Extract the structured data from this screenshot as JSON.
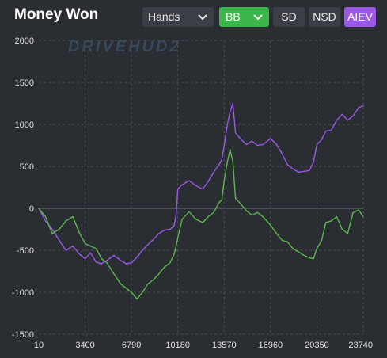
{
  "header": {
    "title": "Money Won",
    "x_select": "Hands",
    "unit_select": "BB",
    "buttons": [
      "SD",
      "NSD",
      "AIEV"
    ]
  },
  "watermark": "DRIVEHUD2",
  "colors": {
    "background": "#2a2d32",
    "grid": "#4a4f57",
    "zero_line": "#6d7280",
    "bb_button": "#3cb64a",
    "aiev_button": "#9b59e6"
  },
  "chart_data": {
    "type": "line",
    "title": "",
    "xlabel": "",
    "ylabel": "",
    "xlim": [
      10,
      23740
    ],
    "ylim": [
      -1500,
      2000
    ],
    "x_ticks": [
      10,
      3400,
      6790,
      10180,
      13570,
      16960,
      20350,
      23740
    ],
    "y_ticks": [
      -1500,
      -1000,
      -500,
      0,
      500,
      1000,
      1500,
      2000
    ],
    "grid": true,
    "series": [
      {
        "name": "",
        "color": "#9b59e6",
        "x": [
          10,
          500,
          1000,
          1500,
          2000,
          2500,
          3000,
          3400,
          3800,
          4200,
          4600,
          5000,
          5500,
          6000,
          6400,
          6790,
          7200,
          7600,
          8000,
          8400,
          8800,
          9200,
          9600,
          9900,
          10050,
          10180,
          10500,
          11000,
          11500,
          12000,
          12400,
          12800,
          13200,
          13400,
          13570,
          13800,
          14000,
          14200,
          14400,
          14800,
          15200,
          15600,
          16000,
          16400,
          16960,
          17400,
          17800,
          18200,
          18600,
          19000,
          19400,
          19800,
          20100,
          20350,
          20700,
          21000,
          21400,
          21800,
          22200,
          22600,
          23000,
          23400,
          23740
        ],
        "y": [
          0,
          -150,
          -250,
          -380,
          -500,
          -450,
          -550,
          -600,
          -530,
          -640,
          -660,
          -620,
          -560,
          -620,
          -660,
          -650,
          -580,
          -500,
          -430,
          -370,
          -300,
          -260,
          -250,
          -210,
          -80,
          230,
          280,
          330,
          270,
          230,
          320,
          430,
          520,
          580,
          750,
          1000,
          1150,
          1250,
          900,
          820,
          760,
          800,
          750,
          760,
          830,
          760,
          650,
          520,
          470,
          430,
          440,
          450,
          550,
          760,
          820,
          920,
          930,
          1050,
          1120,
          1050,
          1100,
          1200,
          1220
        ]
      },
      {
        "name": "",
        "color": "#5bb84b",
        "x": [
          10,
          500,
          1000,
          1500,
          2000,
          2500,
          3000,
          3400,
          3800,
          4200,
          4600,
          5000,
          5500,
          6000,
          6400,
          6790,
          7200,
          7600,
          8000,
          8400,
          8800,
          9200,
          9600,
          9900,
          10050,
          10180,
          10500,
          11000,
          11500,
          12000,
          12400,
          12800,
          13200,
          13400,
          13570,
          13800,
          14000,
          14200,
          14400,
          14800,
          15200,
          15600,
          16000,
          16400,
          16960,
          17400,
          17800,
          18200,
          18600,
          19000,
          19400,
          19800,
          20100,
          20350,
          20700,
          21000,
          21400,
          21800,
          22200,
          22600,
          23000,
          23400,
          23740
        ],
        "y": [
          0,
          -100,
          -300,
          -250,
          -150,
          -100,
          -300,
          -420,
          -450,
          -480,
          -600,
          -650,
          -780,
          -900,
          -950,
          -1000,
          -1080,
          -1000,
          -900,
          -850,
          -780,
          -700,
          -650,
          -550,
          -450,
          -350,
          -130,
          -40,
          -130,
          -170,
          -100,
          -50,
          70,
          100,
          330,
          550,
          700,
          560,
          120,
          50,
          -30,
          -80,
          -50,
          -100,
          -200,
          -300,
          -380,
          -400,
          -480,
          -520,
          -560,
          -590,
          -600,
          -480,
          -380,
          -170,
          -150,
          -100,
          -250,
          -300,
          -50,
          -20,
          -100
        ]
      }
    ]
  }
}
